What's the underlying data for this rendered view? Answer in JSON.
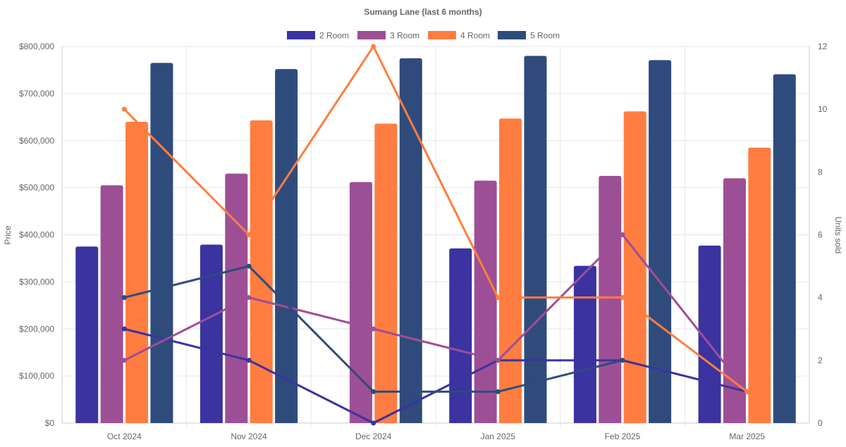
{
  "chart_data": {
    "type": "bar",
    "title": "Sumang Lane (last 6 months)",
    "categories": [
      "Oct 2024",
      "Nov 2024",
      "Dec 2024",
      "Jan 2025",
      "Feb 2025",
      "Mar 2025"
    ],
    "ylabel": "Price",
    "y2label": "Units sold",
    "ylim": [
      0,
      800000
    ],
    "y2lim": [
      0,
      12
    ],
    "yticks": [
      "$0",
      "$100,000",
      "$200,000",
      "$300,000",
      "$400,000",
      "$500,000",
      "$600,000",
      "$700,000",
      "$800,000"
    ],
    "y2ticks": [
      "0",
      "2",
      "4",
      "6",
      "8",
      "10",
      "12"
    ],
    "legend_position": "top",
    "grid": true,
    "series": [
      {
        "name": "2 Room",
        "color": "#3a33a0",
        "values": [
          375000,
          379000,
          null,
          371000,
          334000,
          377000
        ],
        "units": [
          3,
          2,
          0,
          2,
          2,
          1
        ]
      },
      {
        "name": "3 Room",
        "color": "#9d4f95",
        "values": [
          505000,
          530000,
          512000,
          515000,
          525000,
          520000
        ],
        "units": [
          2,
          4,
          3,
          2,
          6,
          1
        ]
      },
      {
        "name": "4 Room",
        "color": "#ff7d40",
        "values": [
          640000,
          643000,
          636000,
          647000,
          662000,
          585000
        ],
        "units": [
          10,
          6,
          12,
          4,
          4,
          1
        ]
      },
      {
        "name": "5 Room",
        "color": "#2f4b7c",
        "values": [
          765000,
          752000,
          775000,
          780000,
          771000,
          741000
        ],
        "units": [
          4,
          5,
          1,
          1,
          2,
          null
        ]
      }
    ]
  }
}
